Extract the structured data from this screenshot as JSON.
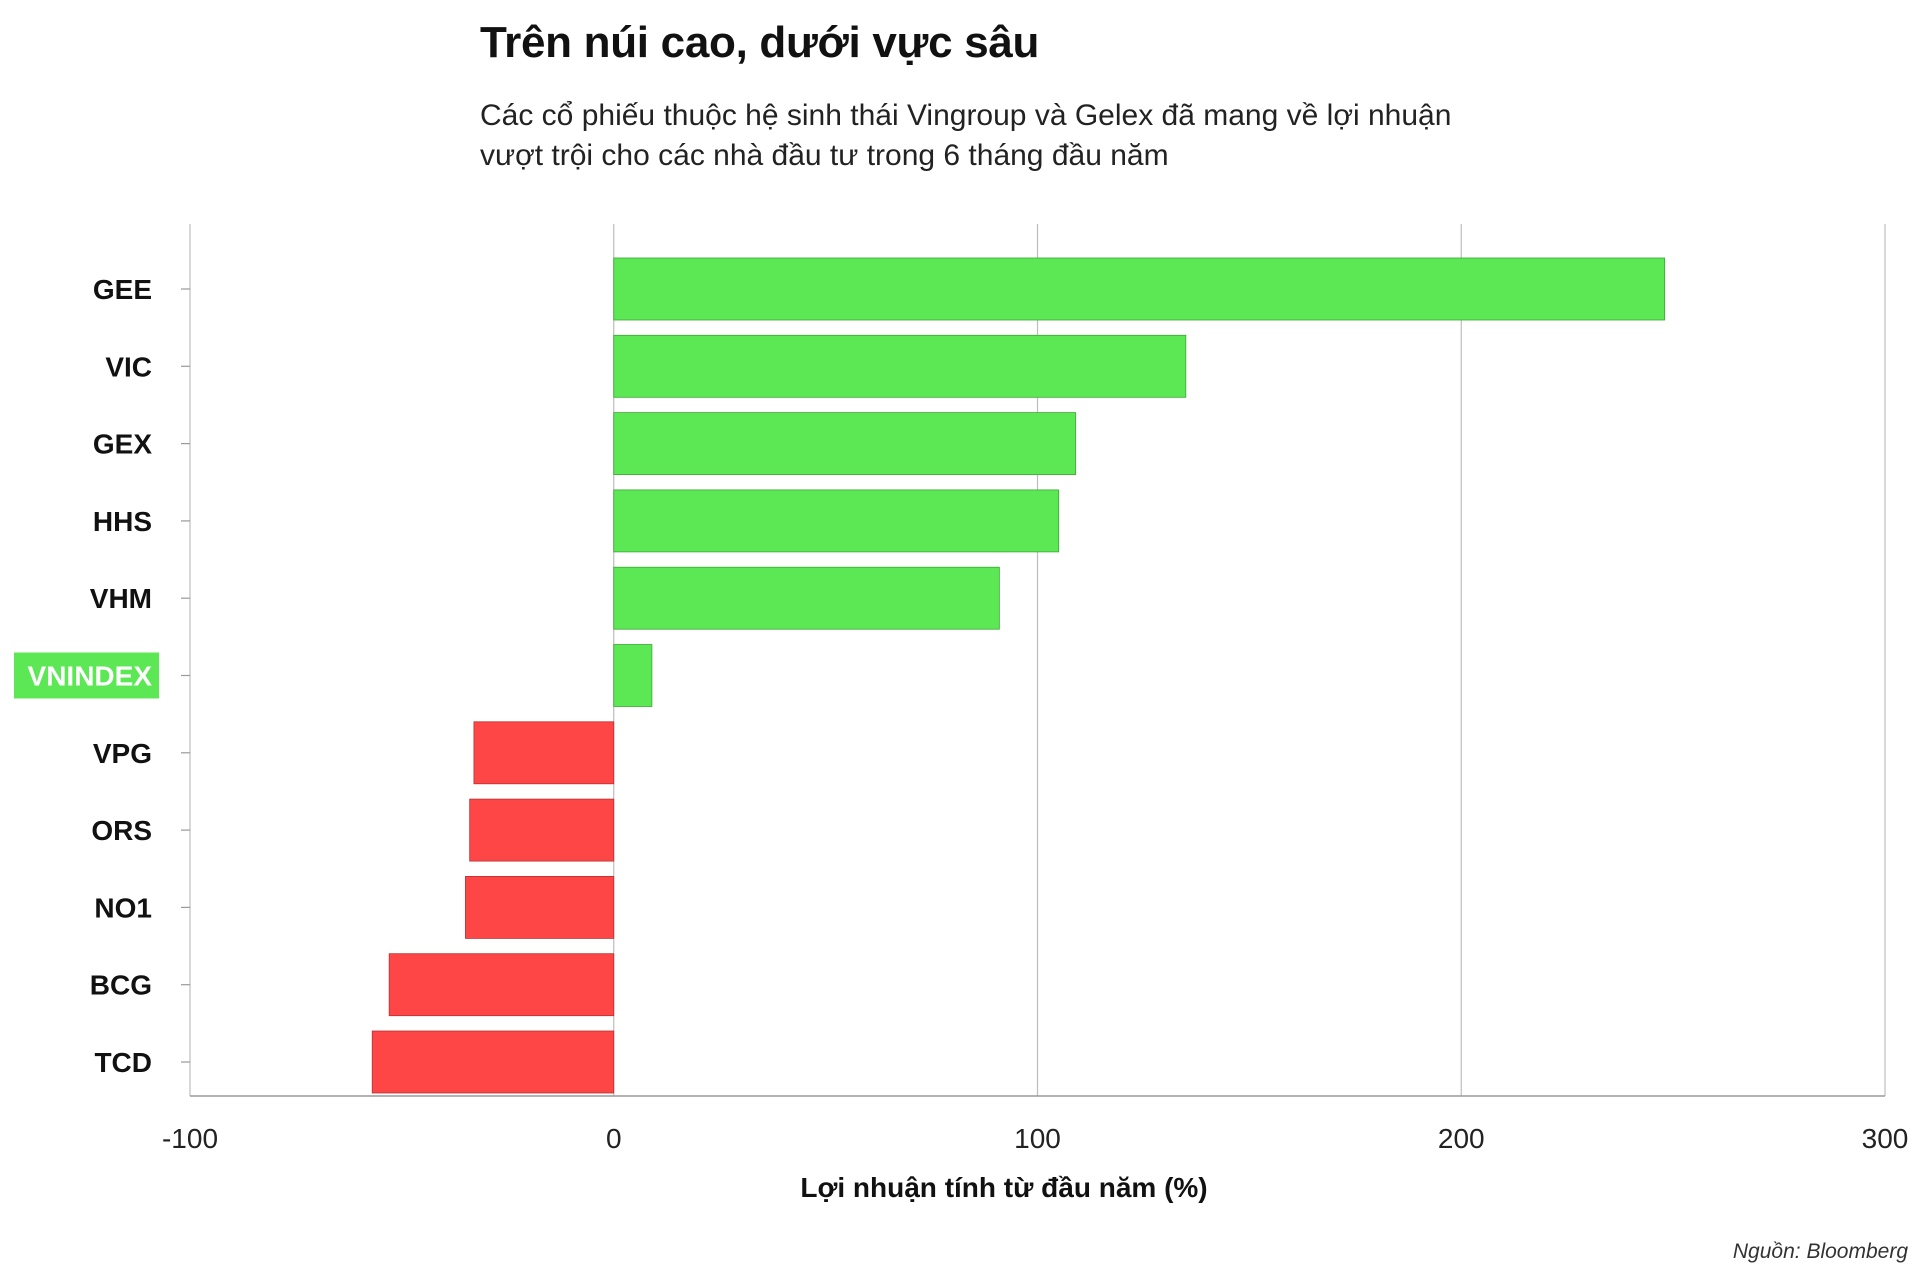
{
  "header": {
    "title": "Trên núi cao, dưới vực sâu",
    "subtitle_line1": "Các cổ phiếu thuộc hệ sinh thái Vingroup và Gelex đã mang về lợi nhuận",
    "subtitle_line2": "vượt trội cho các nhà đầu tư trong 6 tháng đầu năm"
  },
  "footer": {
    "source": "Nguồn: Bloomberg"
  },
  "colors": {
    "positive": "#5ce854",
    "negative": "#ff4646",
    "highlight_label_bg": "#5ce854",
    "highlight_label_text": "#ffffff",
    "grid": "#bdbdbd"
  },
  "chart_data": {
    "type": "bar",
    "orientation": "horizontal",
    "title": "Trên núi cao, dưới vực sâu",
    "xlabel": "Lợi nhuận tính từ đầu năm (%)",
    "ylabel": "",
    "xlim": [
      -100,
      300
    ],
    "xticks": [
      -100,
      0,
      100,
      200,
      300
    ],
    "xtick_labels": [
      "-100",
      "0",
      "100",
      "200",
      "300"
    ],
    "grid": true,
    "categories": [
      "GEE",
      "VIC",
      "GEX",
      "HHS",
      "VHM",
      "VNINDEX",
      "VPG",
      "ORS",
      "NO1",
      "BCG",
      "TCD"
    ],
    "values": [
      248,
      135,
      109,
      105,
      91,
      9,
      -33,
      -34,
      -35,
      -53,
      -57
    ],
    "highlight": "VNINDEX"
  }
}
